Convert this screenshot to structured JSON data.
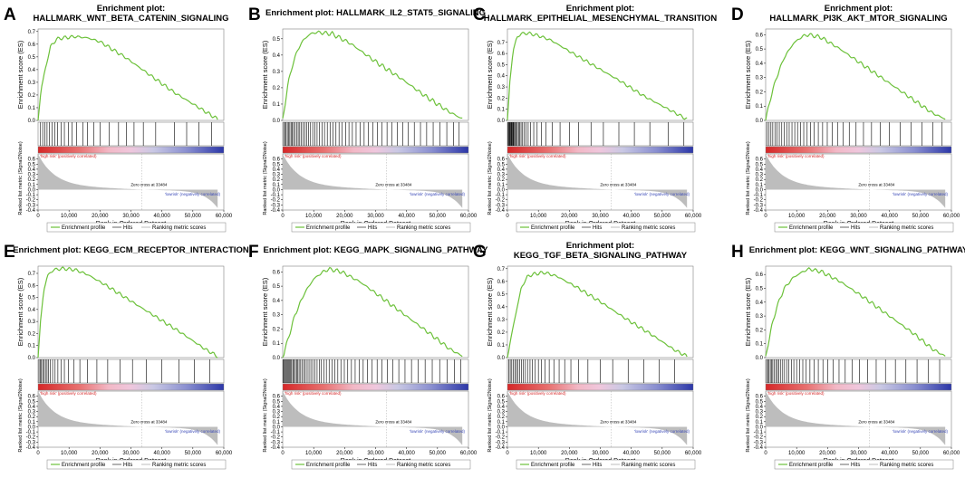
{
  "colors": {
    "es_line": "#6cc13a",
    "hits": "#000000",
    "metric": "#bdbdbd",
    "pos_label": "#d62728",
    "neg_label": "#3b4ab8"
  },
  "chart_data": [
    {
      "type": "line",
      "letter": "A",
      "title": [
        "Enrichment plot:",
        "HALLMARK_WNT_BETA_CATENIN_SIGNALING"
      ],
      "ylabel": "Enrichment score (ES)",
      "yticks": [
        "0.7",
        "0.6",
        "0.5",
        "0.4",
        "0.3",
        "0.2",
        "0.1",
        "0.0"
      ],
      "ylim": [
        0,
        0.72
      ],
      "xlim": [
        0,
        60000
      ],
      "peak_value": 0.66,
      "peak_rank": 10000,
      "es_curve": [
        [
          0,
          0
        ],
        [
          1000,
          0.25
        ],
        [
          2500,
          0.42
        ],
        [
          4000,
          0.58
        ],
        [
          6000,
          0.64
        ],
        [
          8000,
          0.65
        ],
        [
          12000,
          0.66
        ],
        [
          16000,
          0.65
        ],
        [
          20000,
          0.62
        ],
        [
          28000,
          0.5
        ],
        [
          36000,
          0.36
        ],
        [
          44000,
          0.22
        ],
        [
          52000,
          0.1
        ],
        [
          58000,
          0.01
        ]
      ],
      "hits": [
        800,
        1500,
        2200,
        2900,
        3600,
        4500,
        5400,
        6300,
        7500,
        8500,
        9800,
        11000,
        12500,
        14500,
        16000,
        18000,
        20000,
        23000,
        26000,
        28500,
        31000,
        34000,
        38000,
        44000,
        48000,
        52000,
        56000
      ],
      "legend": [
        "Enrichment profile",
        "Hits",
        "Ranking metric scores"
      ]
    },
    {
      "type": "line",
      "letter": "B",
      "title": [
        "Enrichment plot: HALLMARK_IL2_STAT5_SIGNALING"
      ],
      "ylabel": "Enrichment score (ES)",
      "yticks": [
        "0.5",
        "0.4",
        "0.3",
        "0.2",
        "0.1",
        "0.0"
      ],
      "ylim": [
        0,
        0.56
      ],
      "xlim": [
        0,
        60000
      ],
      "peak_value": 0.54,
      "peak_rank": 11000,
      "es_curve": [
        [
          0,
          0
        ],
        [
          1500,
          0.2
        ],
        [
          3000,
          0.33
        ],
        [
          5000,
          0.44
        ],
        [
          7000,
          0.5
        ],
        [
          9000,
          0.53
        ],
        [
          11000,
          0.54
        ],
        [
          16000,
          0.53
        ],
        [
          22000,
          0.47
        ],
        [
          30000,
          0.36
        ],
        [
          38000,
          0.26
        ],
        [
          46000,
          0.15
        ],
        [
          54000,
          0.05
        ],
        [
          58000,
          0.01
        ]
      ],
      "hits": [
        300,
        700,
        1100,
        1500,
        1900,
        2300,
        2700,
        3100,
        3500,
        4000,
        4500,
        5000,
        5500,
        6000,
        6600,
        7200,
        7800,
        8400,
        9000,
        9700,
        10400,
        11100,
        11900,
        12700,
        13500,
        14400,
        15300,
        16200,
        17200,
        18200,
        19200,
        20300,
        21400,
        22500,
        23700,
        25000,
        26300,
        27700,
        29100,
        30600,
        32100,
        33700,
        35300,
        37000,
        38800,
        40600,
        42500,
        44500,
        46500,
        48600,
        50800,
        53000,
        55200,
        57000
      ],
      "legend": [
        "Enrichment profile",
        "Hits",
        "Ranking metric scores"
      ]
    },
    {
      "type": "line",
      "letter": "C",
      "title": [
        "Enrichment plot:",
        "HALLMARK_EPITHELIAL_MESENCHYMAL_TRANSITION"
      ],
      "ylabel": "Enrichment score (ES)",
      "yticks": [
        "0.7",
        "0.6",
        "0.5",
        "0.4",
        "0.3",
        "0.2",
        "0.1",
        "0.0"
      ],
      "ylim": [
        0,
        0.82
      ],
      "xlim": [
        0,
        60000
      ],
      "peak_value": 0.78,
      "peak_rank": 5000,
      "es_curve": [
        [
          0,
          0
        ],
        [
          800,
          0.35
        ],
        [
          1800,
          0.62
        ],
        [
          3000,
          0.74
        ],
        [
          4500,
          0.78
        ],
        [
          7000,
          0.78
        ],
        [
          10000,
          0.76
        ],
        [
          14000,
          0.72
        ],
        [
          20000,
          0.62
        ],
        [
          28000,
          0.49
        ],
        [
          36000,
          0.36
        ],
        [
          44000,
          0.22
        ],
        [
          52000,
          0.1
        ],
        [
          58000,
          0.01
        ]
      ],
      "hits": [
        200,
        400,
        600,
        800,
        1000,
        1200,
        1400,
        1600,
        1800,
        2000,
        2300,
        2600,
        2900,
        3200,
        3600,
        4000,
        4400,
        4900,
        5400,
        6000,
        6700,
        7500,
        8500,
        9600,
        11000,
        12500,
        14500,
        17000,
        20000,
        23000,
        27000,
        31000,
        36000,
        41000,
        46000,
        52000,
        57000
      ],
      "legend": [
        "Enrichment profile",
        "Hits",
        "Ranking metric scores"
      ]
    },
    {
      "type": "line",
      "letter": "D",
      "title": [
        "Enrichment plot:",
        "HALLMARK_PI3K_AKT_MTOR_SIGNALING"
      ],
      "ylabel": "Enrichment score (ES)",
      "yticks": [
        "0.6",
        "0.5",
        "0.4",
        "0.3",
        "0.2",
        "0.1",
        "0.0"
      ],
      "ylim": [
        0,
        0.64
      ],
      "xlim": [
        0,
        60000
      ],
      "peak_value": 0.6,
      "peak_rank": 13000,
      "es_curve": [
        [
          0,
          0
        ],
        [
          1500,
          0.15
        ],
        [
          3500,
          0.3
        ],
        [
          6000,
          0.44
        ],
        [
          9000,
          0.54
        ],
        [
          12000,
          0.59
        ],
        [
          14000,
          0.6
        ],
        [
          18000,
          0.58
        ],
        [
          24000,
          0.5
        ],
        [
          32000,
          0.38
        ],
        [
          40000,
          0.26
        ],
        [
          48000,
          0.14
        ],
        [
          54000,
          0.05
        ],
        [
          58000,
          0.01
        ]
      ],
      "hits": [
        500,
        1100,
        1700,
        2300,
        3000,
        3700,
        4400,
        5200,
        6000,
        6800,
        7600,
        8500,
        9400,
        10300,
        11300,
        12300,
        13400,
        14500,
        15700,
        17000,
        18400,
        19900,
        21500,
        23200,
        25000,
        27000,
        29200,
        31600,
        34200,
        37000,
        40000,
        43500,
        47000,
        50500,
        54000,
        57000
      ],
      "legend": [
        "Enrichment profile",
        "Hits",
        "Ranking metric scores"
      ]
    },
    {
      "type": "line",
      "letter": "E",
      "title": [
        "Enrichment plot: KEGG_ECM_RECEPTOR_INTERACTION"
      ],
      "ylabel": "Enrichment score (ES)",
      "yticks": [
        "0.7",
        "0.6",
        "0.5",
        "0.4",
        "0.3",
        "0.2",
        "0.1",
        "0.0"
      ],
      "ylim": [
        0,
        0.76
      ],
      "xlim": [
        0,
        60000
      ],
      "peak_value": 0.74,
      "peak_rank": 8000,
      "es_curve": [
        [
          0,
          0
        ],
        [
          800,
          0.3
        ],
        [
          1800,
          0.55
        ],
        [
          3000,
          0.68
        ],
        [
          5000,
          0.73
        ],
        [
          8000,
          0.74
        ],
        [
          12000,
          0.73
        ],
        [
          16000,
          0.69
        ],
        [
          22000,
          0.6
        ],
        [
          30000,
          0.47
        ],
        [
          38000,
          0.34
        ],
        [
          46000,
          0.21
        ],
        [
          54000,
          0.07
        ],
        [
          58000,
          0.01
        ]
      ],
      "hits": [
        300,
        700,
        1100,
        1500,
        1900,
        2400,
        2900,
        3400,
        4000,
        4700,
        5500,
        6400,
        7400,
        8500,
        9800,
        11500,
        13500,
        16000,
        19000,
        22500,
        26500,
        30500,
        35000,
        40000,
        45500,
        50500,
        55500
      ],
      "legend": [
        "Enrichment profile",
        "Hits",
        "Ranking metric scores"
      ]
    },
    {
      "type": "line",
      "letter": "F",
      "title": [
        "Enrichment plot: KEGG_MAPK_SIGNALING_PATHWAY"
      ],
      "ylabel": "Enrichment score (ES)",
      "yticks": [
        "0.6",
        "0.5",
        "0.4",
        "0.3",
        "0.2",
        "0.1",
        "0.0"
      ],
      "ylim": [
        0,
        0.64
      ],
      "xlim": [
        0,
        60000
      ],
      "peak_value": 0.62,
      "peak_rank": 15000,
      "es_curve": [
        [
          0,
          0
        ],
        [
          2000,
          0.15
        ],
        [
          4000,
          0.3
        ],
        [
          7000,
          0.45
        ],
        [
          10000,
          0.55
        ],
        [
          13000,
          0.6
        ],
        [
          15000,
          0.62
        ],
        [
          19000,
          0.6
        ],
        [
          25000,
          0.53
        ],
        [
          32000,
          0.42
        ],
        [
          40000,
          0.29
        ],
        [
          48000,
          0.16
        ],
        [
          54000,
          0.06
        ],
        [
          58000,
          0.01
        ]
      ],
      "hits": [
        200,
        500,
        800,
        1100,
        1400,
        1700,
        2000,
        2300,
        2600,
        2900,
        3300,
        3700,
        4100,
        4500,
        4900,
        5300,
        5800,
        6300,
        6800,
        7300,
        7900,
        8500,
        9100,
        9700,
        10400,
        11100,
        11800,
        12500,
        13300,
        14100,
        15000,
        15900,
        16800,
        17800,
        18800,
        19900,
        21000,
        22200,
        23400,
        24700,
        26000,
        27400,
        28900,
        30500,
        32100,
        33800,
        35600,
        37500,
        39500,
        41600,
        43800,
        46000,
        48300,
        50700,
        53100,
        55500,
        57500
      ],
      "legend": [
        "Enrichment profile",
        "Hits",
        "Ranking metric scores"
      ]
    },
    {
      "type": "line",
      "letter": "G",
      "title": [
        "Enrichment plot:",
        "KEGG_TGF_BETA_SIGNALING_PATHWAY"
      ],
      "ylabel": "Enrichment score (ES)",
      "yticks": [
        "0.7",
        "0.6",
        "0.5",
        "0.4",
        "0.3",
        "0.2",
        "0.1",
        "0.0"
      ],
      "ylim": [
        0,
        0.72
      ],
      "xlim": [
        0,
        60000
      ],
      "peak_value": 0.67,
      "peak_rank": 11000,
      "es_curve": [
        [
          0,
          0
        ],
        [
          1500,
          0.2
        ],
        [
          3000,
          0.38
        ],
        [
          4500,
          0.55
        ],
        [
          6500,
          0.64
        ],
        [
          9000,
          0.66
        ],
        [
          12000,
          0.67
        ],
        [
          16000,
          0.64
        ],
        [
          22000,
          0.56
        ],
        [
          30000,
          0.44
        ],
        [
          38000,
          0.31
        ],
        [
          46000,
          0.19
        ],
        [
          54000,
          0.06
        ],
        [
          58000,
          0.01
        ]
      ],
      "hits": [
        400,
        900,
        1400,
        1900,
        2400,
        2900,
        3400,
        3900,
        4500,
        5100,
        5800,
        6500,
        7300,
        8100,
        9000,
        10000,
        11000,
        12200,
        13500,
        15000,
        16700,
        18500,
        20500,
        23000,
        26000,
        30000,
        34000,
        39000,
        44000,
        49000,
        54000
      ],
      "legend": [
        "Enrichment profile",
        "Hits",
        "Ranking metric scores"
      ]
    },
    {
      "type": "line",
      "letter": "H",
      "title": [
        "Enrichment plot: KEGG_WNT_SIGNALING_PATHWAY"
      ],
      "ylabel": "Enrichment score (ES)",
      "yticks": [
        "0.6",
        "0.5",
        "0.4",
        "0.3",
        "0.2",
        "0.1",
        "0.0"
      ],
      "ylim": [
        0,
        0.66
      ],
      "xlim": [
        0,
        60000
      ],
      "peak_value": 0.64,
      "peak_rank": 14000,
      "es_curve": [
        [
          0,
          0
        ],
        [
          1500,
          0.18
        ],
        [
          3500,
          0.36
        ],
        [
          6000,
          0.5
        ],
        [
          9000,
          0.58
        ],
        [
          12000,
          0.62
        ],
        [
          14000,
          0.64
        ],
        [
          18000,
          0.62
        ],
        [
          24000,
          0.55
        ],
        [
          32000,
          0.43
        ],
        [
          40000,
          0.3
        ],
        [
          48000,
          0.17
        ],
        [
          54000,
          0.06
        ],
        [
          58000,
          0.01
        ]
      ],
      "hits": [
        300,
        700,
        1100,
        1500,
        1900,
        2300,
        2800,
        3300,
        3800,
        4300,
        4900,
        5500,
        6100,
        6800,
        7500,
        8300,
        9100,
        10000,
        11000,
        12000,
        13100,
        14300,
        15600,
        17000,
        18500,
        20100,
        21800,
        23700,
        25700,
        27900,
        30300,
        32900,
        35700,
        38700,
        41900,
        45300,
        48900,
        52600,
        56200
      ],
      "legend": [
        "Enrichment profile",
        "Hits",
        "Ranking metric scores"
      ]
    }
  ],
  "shared": {
    "bottom_ylabel": "Ranked list metric (Signal2Noise)",
    "bottom_yticks": [
      "0.6",
      "0.5",
      "0.4",
      "0.3",
      "0.2",
      "0.1",
      "0.0",
      "-0.1",
      "-0.2",
      "-0.3",
      "-0.4"
    ],
    "bottom_ylim": [
      -0.4,
      0.7
    ],
    "xlabel": "Rank in Ordered Dataset",
    "xticks": [
      "0",
      "10,000",
      "20,000",
      "30,000",
      "40,000",
      "50,000",
      "60,000"
    ],
    "pos_label": "'high risk' (positively correlated)",
    "neg_label": "'lowrisk' (negatively correlated)",
    "zero_cross": "Zero cross at 33484"
  }
}
